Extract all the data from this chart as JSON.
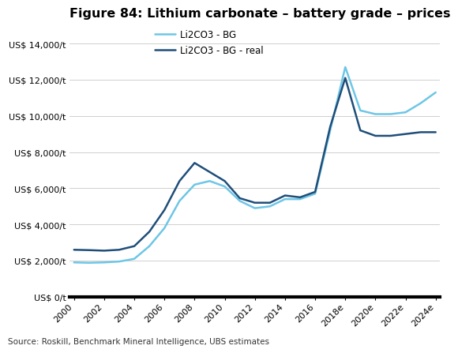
{
  "title": "Figure 84: Lithium carbonate – battery grade – prices",
  "source": "Source: Roskill, Benchmark Mineral Intelligence, UBS estimates",
  "ylim": [
    0,
    15000
  ],
  "yticks": [
    0,
    2000,
    4000,
    6000,
    8000,
    10000,
    12000,
    14000
  ],
  "ytick_labels": [
    "US$ 0/t",
    "US$ 2,000/t",
    "US$ 4,000/t",
    "US$ 6,000/t",
    "US$ 8,000/t",
    "US$ 10,000/t",
    "US$ 12,000/t",
    "US$ 14,000/t"
  ],
  "x_labels": [
    "2000",
    "2002",
    "2004",
    "2006",
    "2008",
    "2010",
    "2012",
    "2014",
    "2016",
    "2018e",
    "2020e",
    "2022e",
    "2024e"
  ],
  "x_values": [
    2000,
    2002,
    2004,
    2006,
    2008,
    2010,
    2012,
    2014,
    2016,
    2018,
    2020,
    2022,
    2024
  ],
  "bg_x": [
    2000,
    2001,
    2002,
    2003,
    2004,
    2005,
    2006,
    2007,
    2008,
    2009,
    2010,
    2011,
    2012,
    2013,
    2014,
    2015,
    2016,
    2017,
    2018,
    2019,
    2020,
    2021,
    2022,
    2023,
    2024
  ],
  "bg_y": [
    1900,
    1880,
    1900,
    1950,
    2100,
    2800,
    3800,
    5300,
    6200,
    6400,
    6100,
    5300,
    4900,
    5000,
    5400,
    5400,
    5700,
    9200,
    12700,
    10300,
    10100,
    10100,
    10200,
    10700,
    11300
  ],
  "real_x": [
    2000,
    2001,
    2002,
    2003,
    2004,
    2005,
    2006,
    2007,
    2008,
    2009,
    2010,
    2011,
    2012,
    2013,
    2014,
    2015,
    2016,
    2017,
    2018,
    2019,
    2020,
    2021,
    2022,
    2023,
    2024
  ],
  "real_y": [
    2600,
    2580,
    2550,
    2600,
    2800,
    3600,
    4800,
    6400,
    7400,
    6900,
    6400,
    5450,
    5200,
    5200,
    5600,
    5500,
    5800,
    9400,
    12100,
    9200,
    8900,
    8900,
    9000,
    9100,
    9100
  ],
  "bg_color": "#6EC6E6",
  "real_color": "#1F4E79",
  "bg_linewidth": 1.8,
  "real_linewidth": 1.8,
  "legend_bg": "Li2CO3 - BG",
  "legend_real": "Li2CO3 - BG - real",
  "background_color": "#ffffff",
  "grid_color": "#c8c8c8",
  "title_fontsize": 11.5,
  "label_fontsize": 8.5,
  "tick_fontsize": 8.0
}
